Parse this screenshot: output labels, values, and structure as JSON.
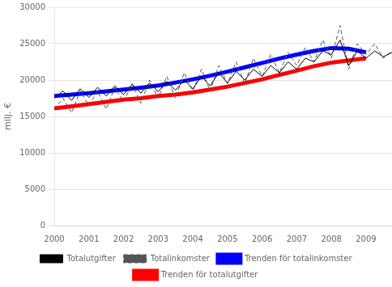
{
  "chart_data": {
    "type": "line",
    "ylabel": "milj. €",
    "xlim": [
      2000,
      2009.75
    ],
    "xticks": [
      2000,
      2001,
      2002,
      2003,
      2004,
      2005,
      2006,
      2007,
      2008,
      2009
    ],
    "ylim": [
      0,
      30000
    ],
    "yticks": [
      0,
      5000,
      10000,
      15000,
      20000,
      25000,
      30000
    ],
    "grid": "y",
    "legend": "bottom",
    "series": [
      {
        "name": "Totalutgifter",
        "color": "#000000",
        "line_style": "solid",
        "x": [
          2000.0,
          2000.25,
          2000.5,
          2000.75,
          2001.0,
          2001.25,
          2001.5,
          2001.75,
          2002.0,
          2002.25,
          2002.5,
          2002.75,
          2003.0,
          2003.25,
          2003.5,
          2003.75,
          2004.0,
          2004.25,
          2004.5,
          2004.75,
          2005.0,
          2005.25,
          2005.5,
          2005.75,
          2006.0,
          2006.25,
          2006.5,
          2006.75,
          2007.0,
          2007.25,
          2007.5,
          2007.75,
          2008.0,
          2008.25,
          2008.5,
          2008.75,
          2009.0,
          2009.25,
          2009.5,
          2009.75
        ],
        "values": [
          17500,
          18500,
          17200,
          18800,
          17600,
          19000,
          17800,
          19200,
          18000,
          19400,
          18200,
          19600,
          18400,
          19800,
          18600,
          20000,
          18800,
          20500,
          19200,
          21000,
          19600,
          21200,
          20000,
          21500,
          20500,
          22000,
          21000,
          22500,
          21500,
          23000,
          22500,
          24000,
          23500,
          25500,
          22000,
          24000,
          23000,
          24000,
          23200,
          23800
        ]
      },
      {
        "name": "Totalinkomster",
        "color": "#555555",
        "line_style": "dashed",
        "x": [
          2000.0,
          2000.25,
          2000.5,
          2000.75,
          2001.0,
          2001.25,
          2001.5,
          2001.75,
          2002.0,
          2002.25,
          2002.5,
          2002.75,
          2003.0,
          2003.25,
          2003.5,
          2003.75,
          2004.0,
          2004.25,
          2004.5,
          2004.75,
          2005.0,
          2005.25,
          2005.5,
          2005.75,
          2006.0,
          2006.25,
          2006.5,
          2006.75,
          2007.0,
          2007.25,
          2007.5,
          2007.75,
          2008.0,
          2008.25,
          2008.5,
          2008.75,
          2009.0,
          2009.25,
          2009.5,
          2009.75
        ],
        "values": [
          16000,
          17500,
          15500,
          18500,
          16500,
          18500,
          16000,
          19000,
          17000,
          19500,
          16800,
          20000,
          17500,
          20500,
          17500,
          21000,
          18500,
          21500,
          18500,
          22000,
          19500,
          22500,
          19500,
          23000,
          20500,
          23500,
          21000,
          23800,
          22000,
          24500,
          22500,
          25500,
          23000,
          27500,
          21500,
          25000,
          23500,
          25000,
          23000,
          24000
        ]
      },
      {
        "name": "Trenden för totalinkomster",
        "color": "#0000ff",
        "line_style": "solid",
        "x": [
          2000.0,
          2000.5,
          2001.0,
          2001.5,
          2002.0,
          2002.5,
          2003.0,
          2003.5,
          2004.0,
          2004.5,
          2005.0,
          2005.5,
          2006.0,
          2006.5,
          2007.0,
          2007.5,
          2008.0,
          2008.5,
          2009.0
        ],
        "values": [
          17800,
          18000,
          18200,
          18450,
          18700,
          18950,
          19250,
          19650,
          20100,
          20600,
          21150,
          21750,
          22350,
          22950,
          23500,
          24000,
          24400,
          24300,
          23800
        ]
      },
      {
        "name": "Trenden för totalutgifter",
        "color": "#ff0000",
        "line_style": "solid",
        "x": [
          2000.0,
          2000.5,
          2001.0,
          2001.5,
          2002.0,
          2002.5,
          2003.0,
          2003.5,
          2004.0,
          2004.5,
          2005.0,
          2005.5,
          2006.0,
          2006.5,
          2007.0,
          2007.5,
          2008.0,
          2008.5,
          2009.0
        ],
        "values": [
          16100,
          16400,
          16700,
          17000,
          17300,
          17500,
          17800,
          18000,
          18300,
          18700,
          19100,
          19600,
          20100,
          20700,
          21300,
          21900,
          22400,
          22700,
          23000
        ]
      }
    ]
  }
}
